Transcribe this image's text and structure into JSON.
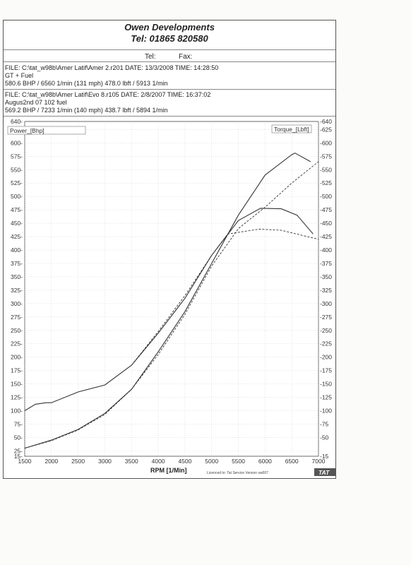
{
  "header": {
    "company": "Owen Developments",
    "tel": "Tel: 01865 820580",
    "tel_label": "Tel:",
    "fax_label": "Fax:"
  },
  "runs": [
    {
      "file": "FILE: C:\\tat_w98b\\Amer Latif\\Amer 2.r201  DATE: 13/3/2008  TIME: 14:28:50",
      "desc": "GT + Fuel",
      "peaks": "580.6 BHP / 6560 1/min (131 mph)    478.0 lbft / 5913 1/min"
    },
    {
      "file": "FILE: C:\\tat_w98b\\Amer Latif\\Evo 8.r105  DATE: 2/8/2007  TIME: 16:37:02",
      "desc": "Augus2nd 07   102 fuel",
      "peaks": "569.2 BHP / 7233 1/min (140 mph)    438.7 lbft / 5894 1/min"
    }
  ],
  "footer": {
    "licence": "Licenced to: Tat Service   Version sw007",
    "brand": "TAT"
  },
  "chart_data": {
    "type": "line",
    "xlabel": "RPM  [1/Min]",
    "x_ticks": [
      1500,
      2000,
      2500,
      3000,
      3500,
      4000,
      4500,
      5000,
      5500,
      6000,
      6500,
      7000
    ],
    "xlim": [
      1500,
      7000
    ],
    "left_axis": {
      "label": "Power_[Bhp]",
      "ylim": [
        15,
        640
      ],
      "ticks": [
        15,
        25,
        50,
        75,
        100,
        125,
        150,
        175,
        200,
        225,
        250,
        275,
        300,
        325,
        350,
        375,
        400,
        425,
        450,
        475,
        500,
        525,
        550,
        575,
        600,
        625,
        640
      ]
    },
    "right_axis": {
      "label": "Torque_[Lbft]",
      "ylim": [
        -15,
        -640
      ],
      "ticks": [
        -15,
        -50,
        -75,
        -100,
        -125,
        -150,
        -175,
        -200,
        -225,
        -250,
        -275,
        -300,
        -325,
        -350,
        -375,
        -400,
        -425,
        -450,
        -475,
        -500,
        -525,
        -550,
        -575,
        -600,
        -625,
        -640
      ]
    },
    "grid": true,
    "series": [
      {
        "axis": "left",
        "style": "solid",
        "x": [
          1500,
          2000,
          2500,
          3000,
          3500,
          4000,
          4500,
          5000,
          5500,
          6000,
          6500,
          6560,
          6850
        ],
        "y": [
          30,
          45,
          65,
          95,
          140,
          210,
          285,
          375,
          465,
          540,
          578,
          581,
          565
        ]
      },
      {
        "axis": "left",
        "style": "dashed",
        "x": [
          1500,
          2000,
          2500,
          3000,
          3500,
          4000,
          4500,
          5000,
          5500,
          6000,
          6500,
          7000
        ],
        "y": [
          30,
          44,
          64,
          93,
          140,
          205,
          280,
          370,
          440,
          480,
          525,
          565
        ]
      },
      {
        "axis": "right",
        "style": "solid",
        "x": [
          1500,
          1700,
          1900,
          2000,
          2500,
          3000,
          3500,
          4000,
          4500,
          5000,
          5500,
          5913,
          6300,
          6600,
          6900
        ],
        "y": [
          -100,
          -112,
          -115,
          -115,
          -135,
          -148,
          -185,
          -245,
          -310,
          -390,
          -455,
          -478,
          -477,
          -465,
          -430
        ]
      },
      {
        "axis": "right",
        "style": "dashed",
        "x": [
          3500,
          4000,
          4500,
          5000,
          5300,
          5894,
          6300,
          7000
        ],
        "y": [
          -185,
          -248,
          -315,
          -390,
          -430,
          -439,
          -437,
          -420
        ]
      }
    ]
  }
}
